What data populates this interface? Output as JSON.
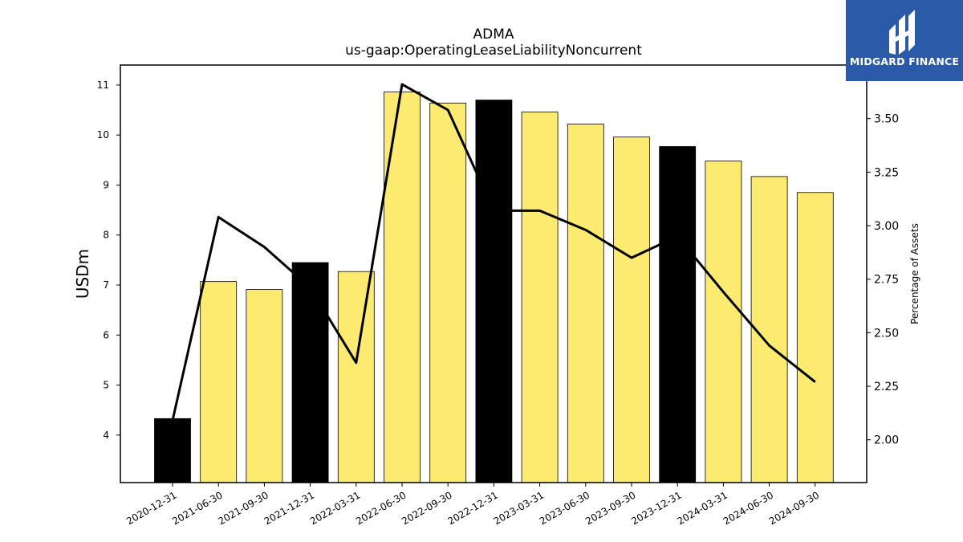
{
  "logo": {
    "text": "MIDGARD FINANCE",
    "color": "#2b5aa8"
  },
  "chart_data": {
    "type": "bar",
    "title": "ADMA",
    "subtitle": "us-gaap:OperatingLeaseLiabilityNoncurrent",
    "ylabel": "USDm",
    "y2label": "Percentage of Assets",
    "categories": [
      "2020-12-31",
      "2021-06-30",
      "2021-09-30",
      "2021-12-31",
      "2022-03-31",
      "2022-06-30",
      "2022-09-30",
      "2022-12-31",
      "2023-03-31",
      "2023-06-30",
      "2023-09-30",
      "2023-12-31",
      "2024-03-31",
      "2024-06-30",
      "2024-09-30"
    ],
    "series": [
      {
        "type": "bar",
        "axis": "left",
        "values": [
          4.33,
          7.07,
          6.91,
          7.45,
          7.27,
          10.86,
          10.64,
          10.7,
          10.46,
          10.22,
          9.96,
          9.77,
          9.48,
          9.17,
          8.85
        ]
      },
      {
        "type": "line",
        "axis": "right",
        "values": [
          2.09,
          3.04,
          2.9,
          2.71,
          2.36,
          3.66,
          3.54,
          3.07,
          3.07,
          2.98,
          2.85,
          2.95,
          2.69,
          2.44,
          2.27
        ]
      }
    ],
    "bar_colors": {
      "year_end": "#000000",
      "other": "#fdeb71"
    },
    "highlight_categories": [
      "2020-12-31",
      "2021-12-31",
      "2022-12-31",
      "2023-12-31"
    ],
    "line_color": "#000000",
    "ylim": [
      3.05,
      11.4
    ],
    "y_ticks": [
      4,
      5,
      6,
      7,
      8,
      9,
      10,
      11
    ],
    "y2lim": [
      1.8,
      3.75
    ],
    "y2_ticks": [
      "2.00",
      "2.25",
      "2.50",
      "2.75",
      "3.00",
      "3.25",
      "3.50"
    ],
    "grid": false,
    "legend": "none"
  }
}
